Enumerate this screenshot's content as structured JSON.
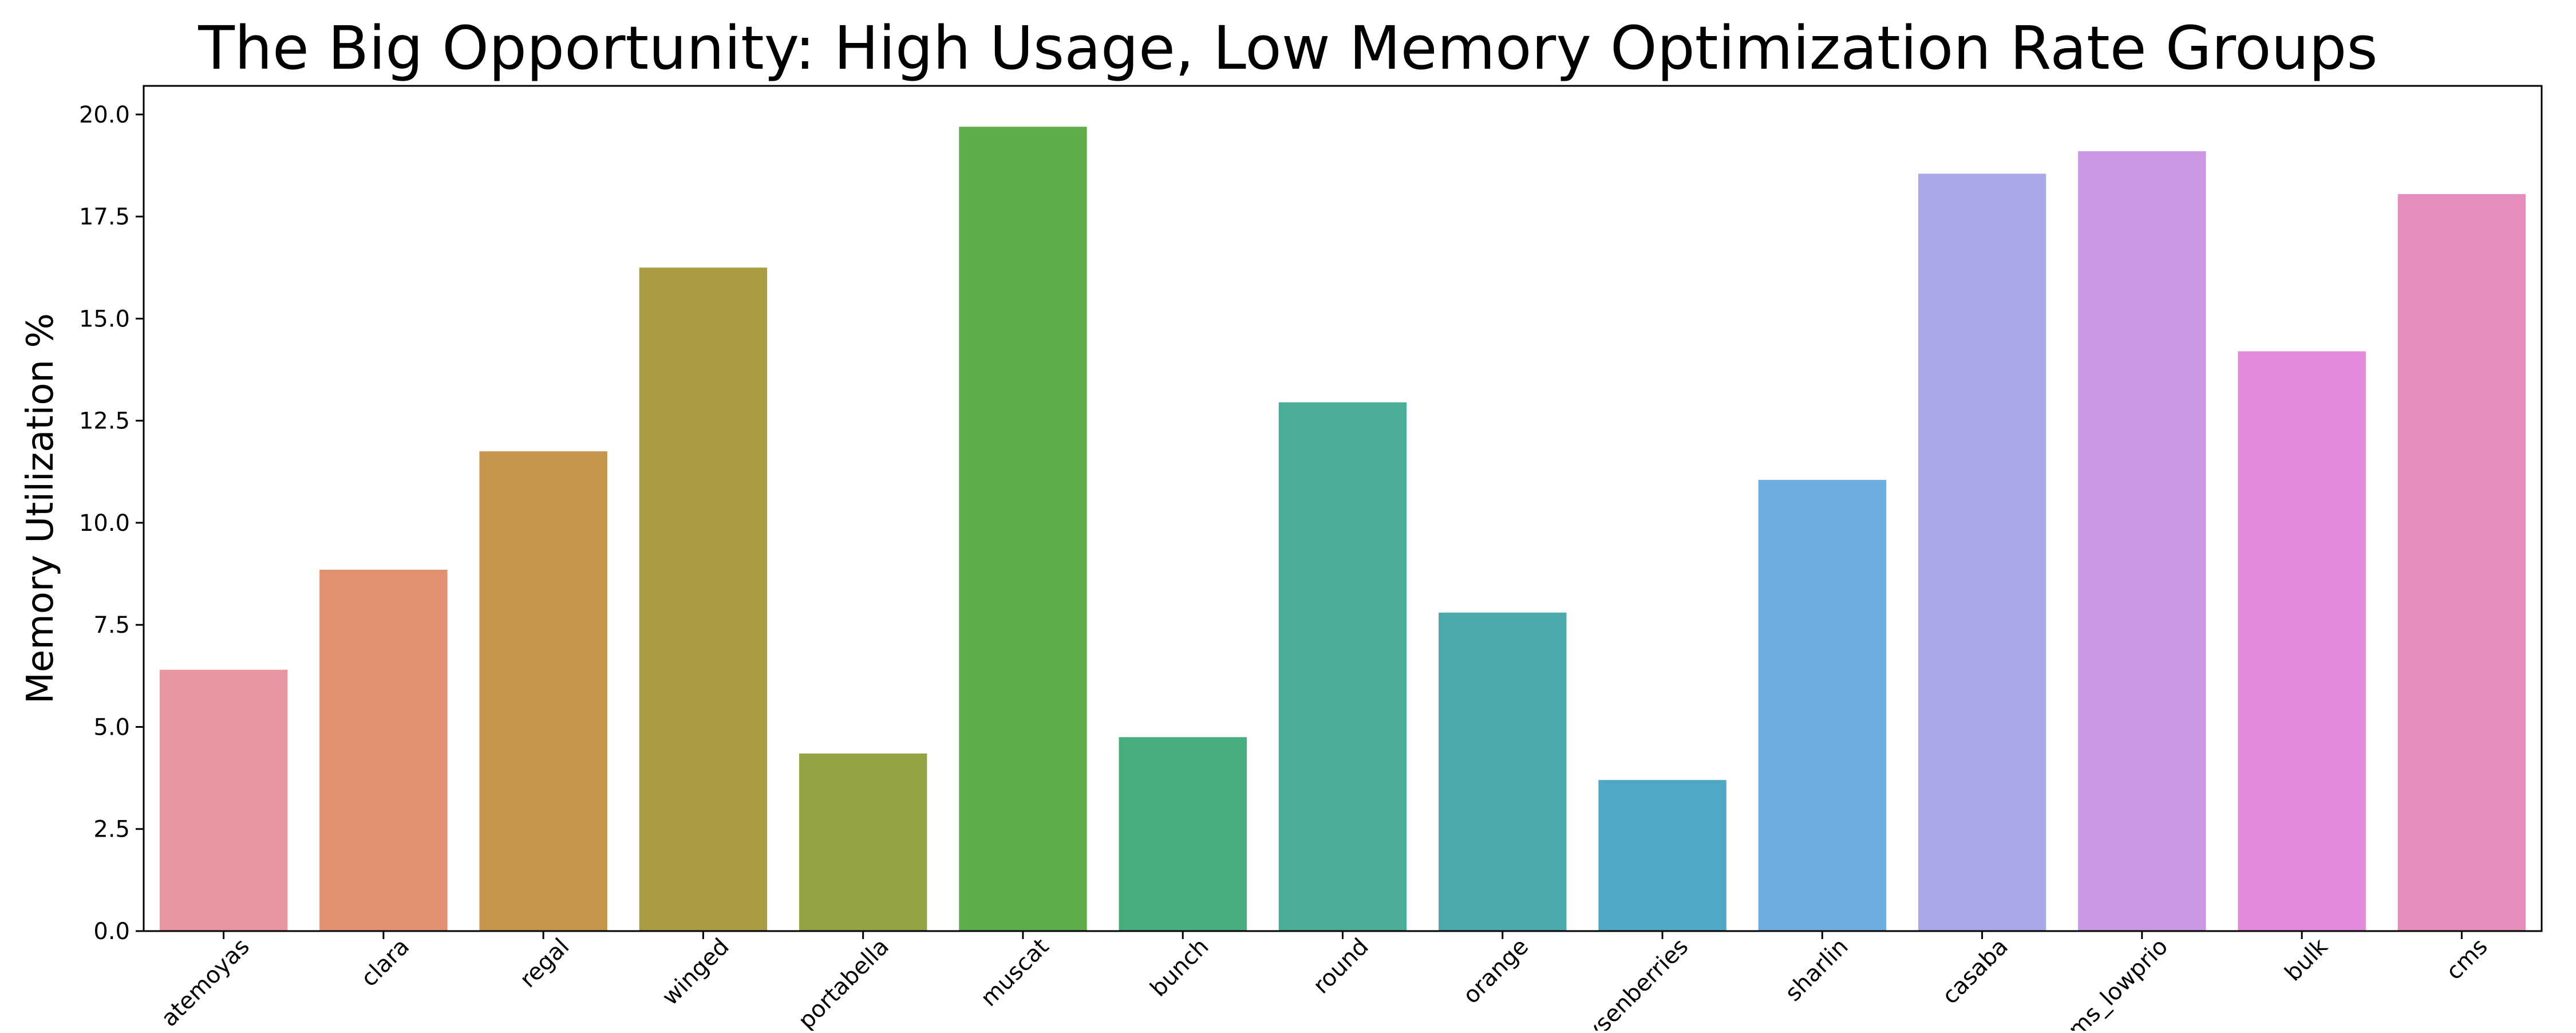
{
  "chart_data": {
    "type": "bar",
    "title": "The Big Opportunity: High Usage, Low Memory Optimization Rate Groups",
    "xlabel": "",
    "ylabel": "Memory Utilization %",
    "ylim": [
      0,
      20.7
    ],
    "yticks": [
      0.0,
      2.5,
      5.0,
      7.5,
      10.0,
      12.5,
      15.0,
      17.5,
      20.0
    ],
    "yticks_labels": [
      "0.0",
      "2.5",
      "5.0",
      "7.5",
      "10.0",
      "12.5",
      "15.0",
      "17.5",
      "20.0"
    ],
    "grid": false,
    "categories": [
      "atemoyas",
      "clara",
      "regal",
      "winged",
      "portabella",
      "muscat",
      "bunch",
      "round",
      "orange",
      "boysenberries",
      "sharlin",
      "casaba",
      "cms_lowprio",
      "bulk",
      "cms"
    ],
    "values": [
      6.4,
      8.85,
      11.75,
      16.25,
      4.35,
      19.7,
      4.75,
      12.95,
      7.8,
      3.7,
      11.05,
      18.55,
      19.1,
      14.2,
      18.05
    ],
    "colors": [
      "#e8959f",
      "#e29270",
      "#c4974c",
      "#a99c45",
      "#92a446",
      "#5fad48",
      "#4aad7e",
      "#4cac98",
      "#4ca9ab",
      "#50a9c4",
      "#6caee0",
      "#aba8e8",
      "#cc98e6",
      "#e489da",
      "#e68dbd"
    ]
  }
}
